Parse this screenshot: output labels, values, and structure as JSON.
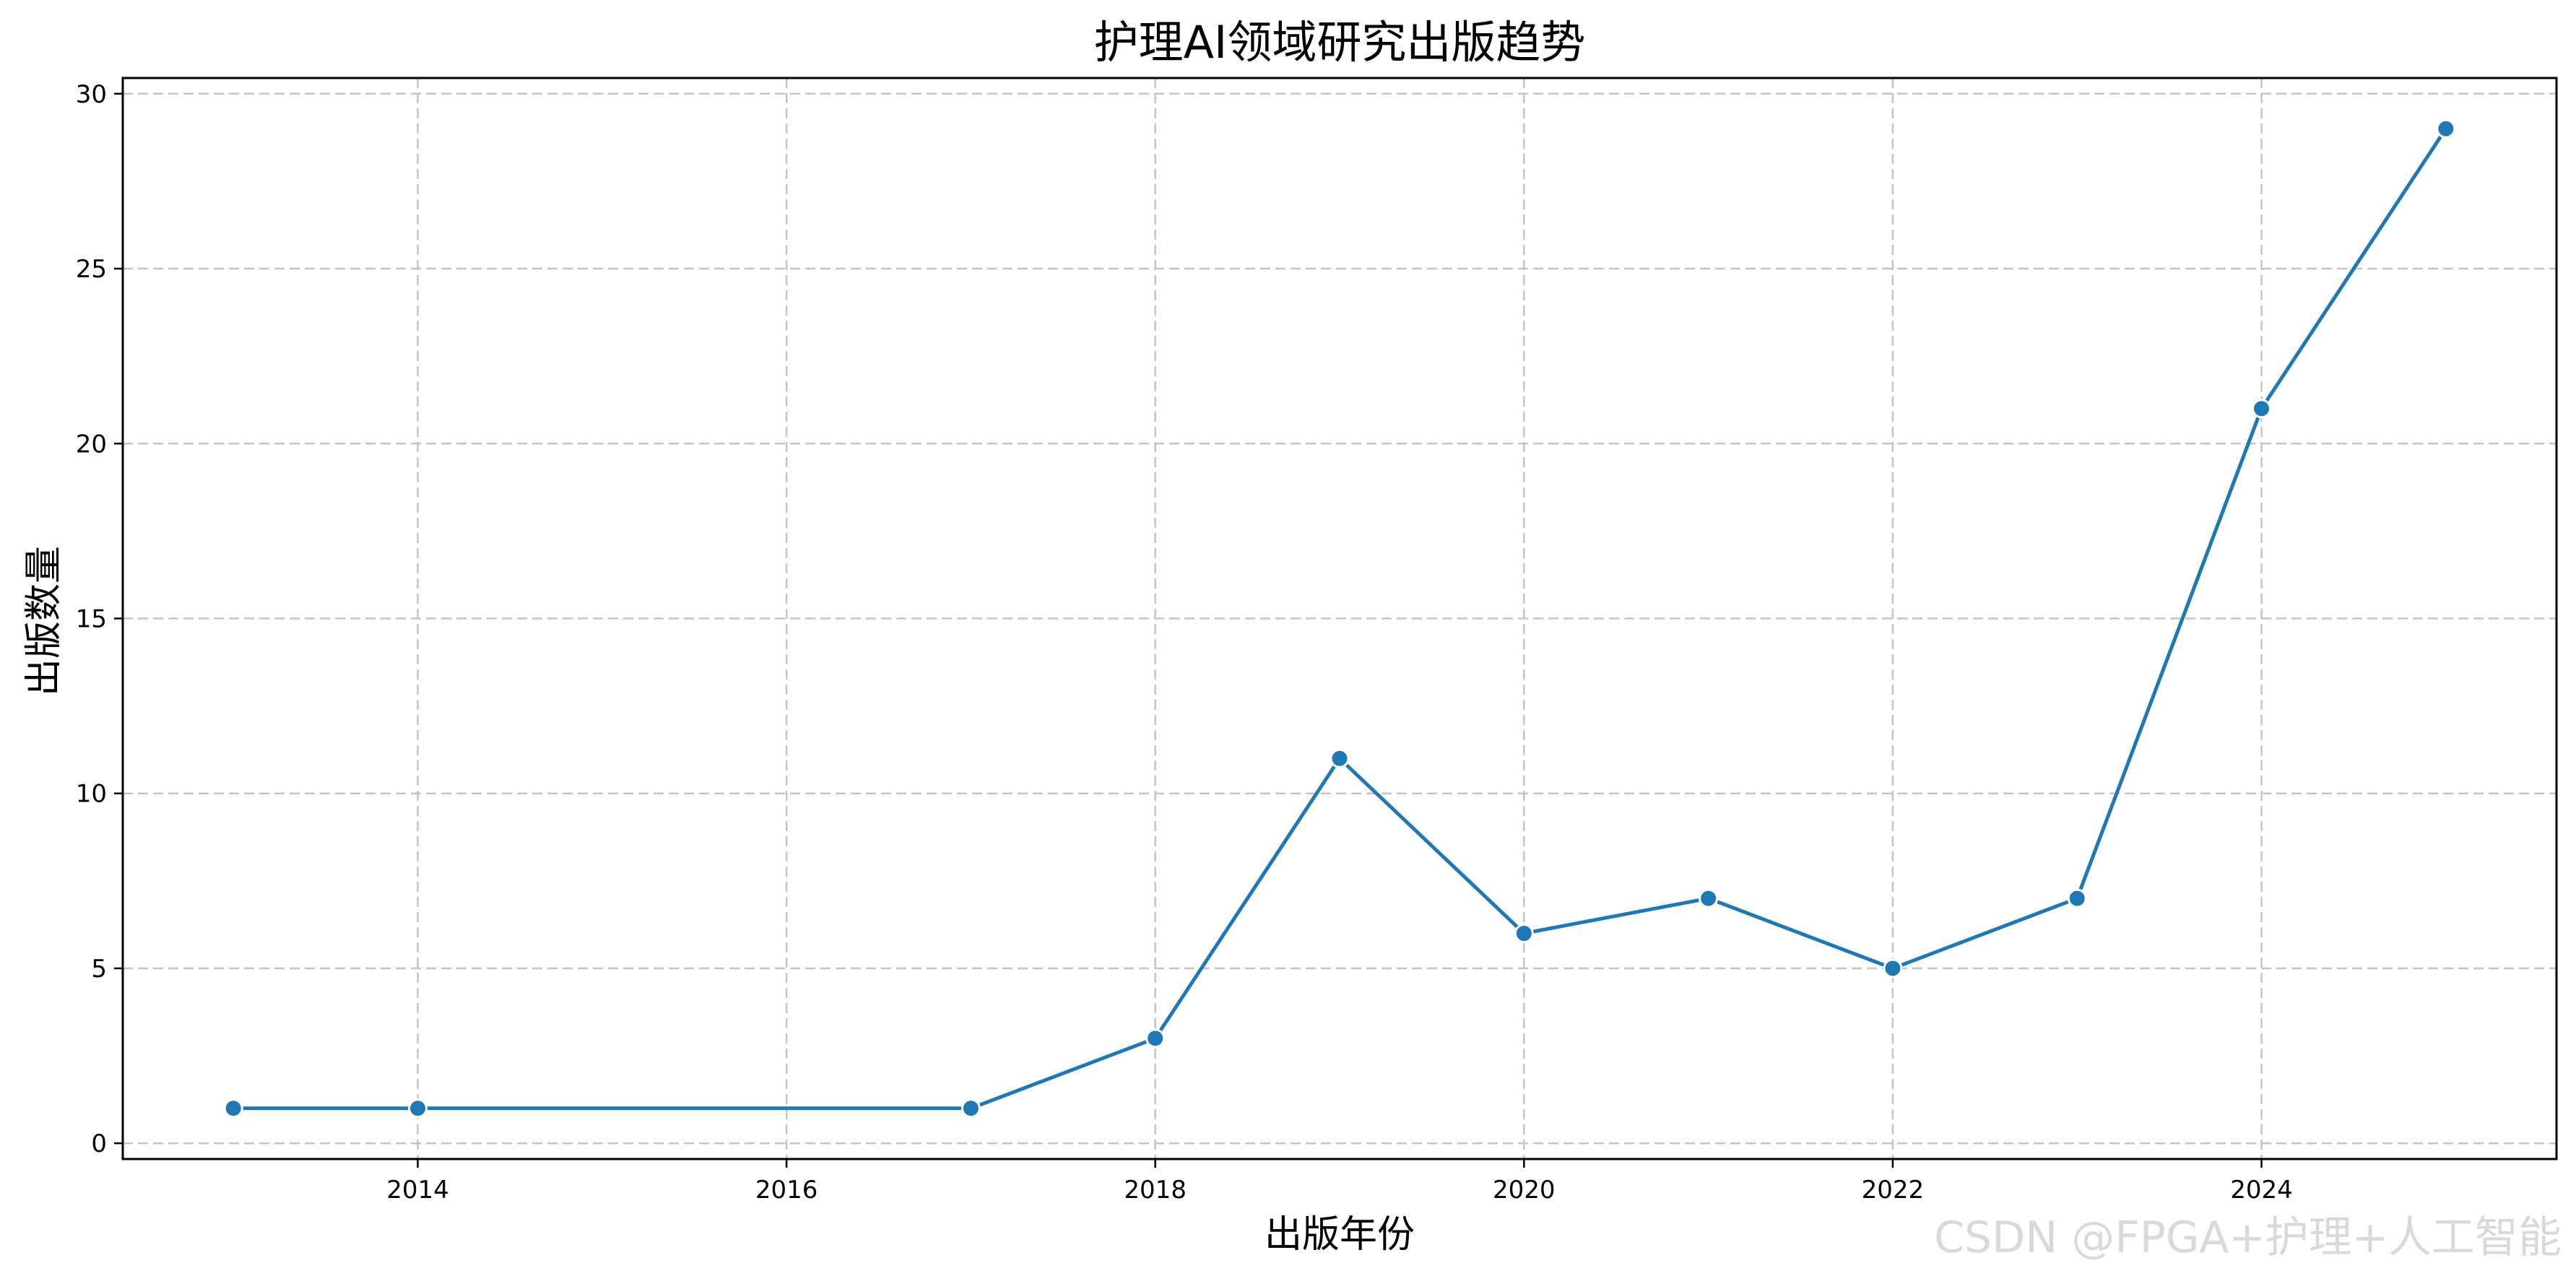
{
  "chart_data": {
    "type": "line",
    "title": "护理AI领域研究出版趋势",
    "xlabel": "出版年份",
    "ylabel": "出版数量",
    "x": [
      2013,
      2014,
      2017,
      2018,
      2019,
      2020,
      2021,
      2022,
      2023,
      2024,
      2025
    ],
    "series": [
      {
        "values": [
          1,
          1,
          1,
          3,
          11,
          6,
          7,
          5,
          7,
          21,
          29
        ]
      }
    ],
    "xlim": [
      2012.4,
      2025.6
    ],
    "ylim": [
      -0.45,
      30.45
    ],
    "xticks": [
      2014,
      2016,
      2018,
      2020,
      2022,
      2024
    ],
    "yticks": [
      0,
      5,
      10,
      15,
      20,
      25,
      30
    ],
    "grid": true,
    "marker": "circle",
    "color": "#1f77b4"
  },
  "watermark": "CSDN @FPGA+护理+人工智能"
}
